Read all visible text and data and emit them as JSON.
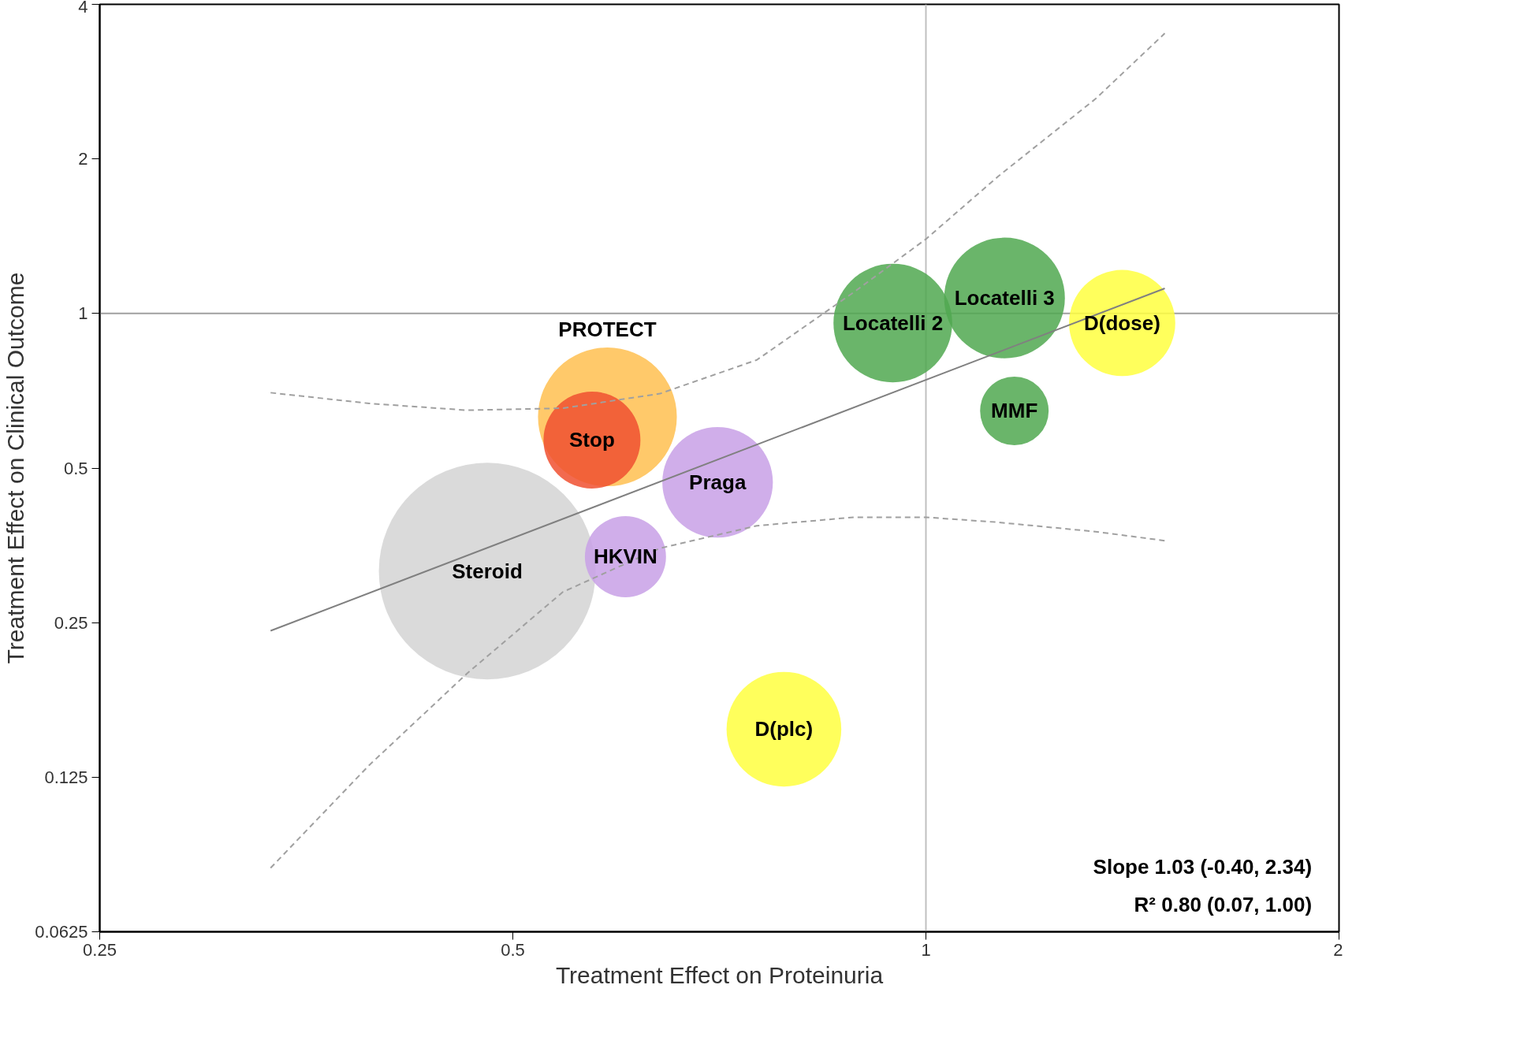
{
  "chart_data": {
    "type": "bubble",
    "xlabel": "Treatment Effect on Proteinuria",
    "ylabel": "Treatment Effect on Clinical Outcome",
    "log": "xy",
    "grid": false,
    "legend": false,
    "xlim": [
      0.25,
      2
    ],
    "xticks": [
      0.25,
      0.5,
      1,
      2
    ],
    "ylim": [
      0.0625,
      4
    ],
    "yticks": [
      0.0625,
      0.125,
      0.25,
      0.5,
      1,
      2,
      4
    ],
    "ref_lines": [
      {
        "axis": "x",
        "value": 1,
        "color": "#c0c0c0"
      },
      {
        "axis": "y",
        "value": 1,
        "color": "#a0a0a0"
      }
    ],
    "annotations": [
      "Slope   1.03 (-0.40, 2.34)",
      "R²   0.80 (0.07, 1.00)"
    ],
    "series": [
      {
        "name": "Steroid",
        "color": "#d3d3d3",
        "x": [
          0.479
        ],
        "values": [
          0.315
        ],
        "sizes": [
          1
        ]
      },
      {
        "name": "PROTECT",
        "color": "#ffc050",
        "x": [
          0.586
        ],
        "values": [
          0.629
        ],
        "sizes": [
          0.41
        ]
      },
      {
        "name": "Stop",
        "color": "#f05030",
        "x": [
          0.571
        ],
        "values": [
          0.567
        ],
        "sizes": [
          0.2
        ]
      },
      {
        "name": "Praga",
        "color": "#c8a0e6",
        "x": [
          0.705
        ],
        "values": [
          0.469
        ],
        "sizes": [
          0.26
        ]
      },
      {
        "name": "HKVIN",
        "color": "#c8a0e6",
        "x": [
          0.604
        ],
        "values": [
          0.336
        ],
        "sizes": [
          0.14
        ]
      },
      {
        "name": "D(plc)",
        "color": "#ffff40",
        "x": [
          0.788
        ],
        "values": [
          0.155
        ],
        "sizes": [
          0.28
        ]
      },
      {
        "name": "Locatelli 2",
        "color": "#50a850",
        "x": [
          0.946
        ],
        "values": [
          0.958
        ],
        "sizes": [
          0.3
        ]
      },
      {
        "name": "Locatelli 3",
        "color": "#50a850",
        "x": [
          1.141
        ],
        "values": [
          1.072
        ],
        "sizes": [
          0.31
        ]
      },
      {
        "name": "D(dose)",
        "color": "#ffff40",
        "x": [
          1.39
        ],
        "values": [
          0.958
        ],
        "sizes": [
          0.24
        ]
      },
      {
        "name": "MMF",
        "color": "#50a850",
        "x": [
          1.16
        ],
        "values": [
          0.646
        ],
        "sizes": [
          0.1
        ]
      },
      {
        "type": "line",
        "color": "#808080",
        "line_style": "solid",
        "x": [
          0.333,
          1.493
        ],
        "values": [
          0.241,
          1.119
        ]
      },
      {
        "type": "line",
        "color": "#a0a0a0",
        "line_style": "dashed",
        "x": [
          0.333,
          0.393,
          0.463,
          0.544,
          0.64,
          0.753,
          0.886,
          1.0,
          1.129,
          1.329,
          1.493
        ],
        "values": [
          0.701,
          0.668,
          0.648,
          0.654,
          0.698,
          0.812,
          1.1,
          1.396,
          1.85,
          2.617,
          3.512
        ]
      },
      {
        "type": "line",
        "color": "#a0a0a0",
        "line_style": "dashed",
        "x": [
          0.333,
          0.393,
          0.463,
          0.544,
          0.64,
          0.753,
          0.886,
          1.0,
          1.129,
          1.329,
          1.493
        ],
        "values": [
          0.0832,
          0.132,
          0.199,
          0.287,
          0.349,
          0.386,
          0.401,
          0.401,
          0.392,
          0.376,
          0.361
        ]
      }
    ]
  }
}
